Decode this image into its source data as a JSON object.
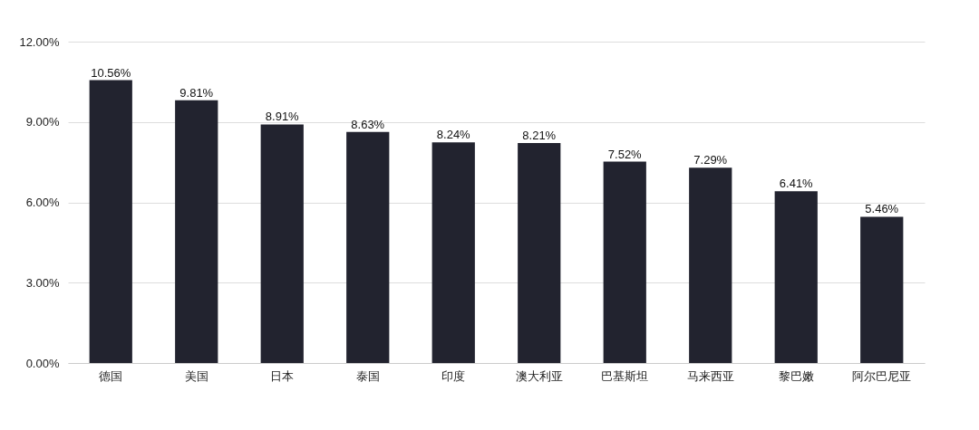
{
  "chart_data": {
    "type": "bar",
    "categories": [
      "德国",
      "美国",
      "日本",
      "泰国",
      "印度",
      "澳大利亚",
      "巴基斯坦",
      "马来西亚",
      "黎巴嫩",
      "阿尔巴尼亚"
    ],
    "values": [
      10.56,
      9.81,
      8.91,
      8.63,
      8.24,
      8.21,
      7.52,
      7.29,
      6.41,
      5.46
    ],
    "value_labels": [
      "10.56%",
      "9.81%",
      "8.91%",
      "8.63%",
      "8.24%",
      "8.21%",
      "7.52%",
      "7.29%",
      "6.41%",
      "5.46%"
    ],
    "color": "#22232f",
    "ylim": [
      0,
      12
    ],
    "yticks": [
      {
        "value": 0,
        "label": "0.00%"
      },
      {
        "value": 3,
        "label": "3.00%"
      },
      {
        "value": 6,
        "label": "6.00%"
      },
      {
        "value": 9,
        "label": "9.00%"
      },
      {
        "value": 12,
        "label": "12.00%"
      }
    ],
    "grid": "y"
  }
}
